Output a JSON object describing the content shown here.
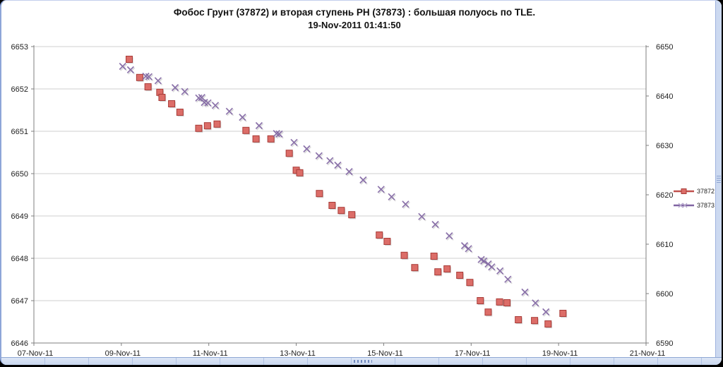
{
  "title": {
    "line1": "Фобос Грунт (37872) и вторая ступень РН (37873) : большая полуось по TLE.",
    "line2": "19-Nov-2011 01:41:50"
  },
  "colors": {
    "grid": "#cfcfcf",
    "axis": "#7f7f7f",
    "tick_text": "#1f1f1f",
    "series1_line": "#c0504d",
    "series1_fill": "#dc6d68",
    "series1_edge": "#a83c38",
    "series2_line": "#8064a2",
    "marker_shadow": "#9a9a9a"
  },
  "chart_data": {
    "type": "scatter",
    "title": "Фобос Грунт (37872) и вторая ступень РН (37873) : большая полуось по TLE.",
    "subtitle": "19-Nov-2011 01:41:50",
    "grid": "horizontal",
    "legend_position": "right",
    "x_axis": {
      "unit": "days since 07-Nov-11",
      "range": [
        0,
        14
      ],
      "tick_days": [
        0,
        2,
        4,
        6,
        8,
        10,
        12,
        14
      ],
      "tick_labels": [
        "07-Nov-11",
        "09-Nov-11",
        "11-Nov-11",
        "13-Nov-11",
        "15-Nov-11",
        "17-Nov-11",
        "19-Nov-11",
        "21-Nov-11"
      ]
    },
    "y_axis_left": {
      "range": [
        6646,
        6653
      ],
      "ticks": [
        6646,
        6647,
        6648,
        6649,
        6650,
        6651,
        6652,
        6653
      ]
    },
    "y_axis_right": {
      "range": [
        6590,
        6650
      ],
      "ticks": [
        6590,
        6600,
        6610,
        6620,
        6630,
        6640,
        6650
      ]
    },
    "series": [
      {
        "name": "37872",
        "axis": "left",
        "marker": "square",
        "points": [
          [
            2.18,
            6652.7
          ],
          [
            2.42,
            6652.27
          ],
          [
            2.61,
            6652.05
          ],
          [
            2.88,
            6651.92
          ],
          [
            2.93,
            6651.8
          ],
          [
            3.15,
            6651.65
          ],
          [
            3.34,
            6651.45
          ],
          [
            3.77,
            6651.07
          ],
          [
            3.97,
            6651.13
          ],
          [
            4.19,
            6651.17
          ],
          [
            4.85,
            6651.02
          ],
          [
            5.08,
            6650.82
          ],
          [
            5.42,
            6650.82
          ],
          [
            5.84,
            6650.48
          ],
          [
            6.0,
            6650.08
          ],
          [
            6.08,
            6650.02
          ],
          [
            6.53,
            6649.53
          ],
          [
            6.82,
            6649.25
          ],
          [
            7.03,
            6649.13
          ],
          [
            7.27,
            6649.03
          ],
          [
            7.9,
            6648.55
          ],
          [
            8.08,
            6648.4
          ],
          [
            8.47,
            6648.07
          ],
          [
            8.71,
            6647.78
          ],
          [
            9.15,
            6648.05
          ],
          [
            9.24,
            6647.68
          ],
          [
            9.45,
            6647.75
          ],
          [
            9.74,
            6647.6
          ],
          [
            9.97,
            6647.43
          ],
          [
            10.21,
            6647.0
          ],
          [
            10.39,
            6646.73
          ],
          [
            10.65,
            6646.97
          ],
          [
            10.82,
            6646.95
          ],
          [
            11.08,
            6646.55
          ],
          [
            11.45,
            6646.53
          ],
          [
            11.76,
            6646.45
          ],
          [
            12.1,
            6646.7
          ]
        ]
      },
      {
        "name": "37873",
        "axis": "right",
        "marker": "x",
        "points": [
          [
            2.03,
            6646.0
          ],
          [
            2.21,
            6645.3
          ],
          [
            2.56,
            6644.0
          ],
          [
            2.63,
            6643.9
          ],
          [
            2.84,
            6643.1
          ],
          [
            3.23,
            6641.7
          ],
          [
            3.45,
            6640.9
          ],
          [
            3.77,
            6639.6
          ],
          [
            3.84,
            6639.7
          ],
          [
            3.9,
            6638.7
          ],
          [
            3.98,
            6638.6
          ],
          [
            4.15,
            6638.1
          ],
          [
            4.47,
            6636.9
          ],
          [
            4.77,
            6635.7
          ],
          [
            5.15,
            6634.0
          ],
          [
            5.55,
            6632.4
          ],
          [
            5.61,
            6632.3
          ],
          [
            5.95,
            6630.6
          ],
          [
            6.24,
            6629.3
          ],
          [
            6.52,
            6627.9
          ],
          [
            6.77,
            6626.9
          ],
          [
            6.95,
            6626.0
          ],
          [
            7.21,
            6624.7
          ],
          [
            7.53,
            6623.0
          ],
          [
            7.94,
            6621.1
          ],
          [
            8.18,
            6619.6
          ],
          [
            8.5,
            6618.1
          ],
          [
            8.87,
            6615.6
          ],
          [
            9.18,
            6614.0
          ],
          [
            9.5,
            6611.7
          ],
          [
            9.85,
            6609.7
          ],
          [
            9.94,
            6609.1
          ],
          [
            10.23,
            6606.9
          ],
          [
            10.29,
            6606.6
          ],
          [
            10.39,
            6606.0
          ],
          [
            10.47,
            6605.4
          ],
          [
            10.66,
            6604.6
          ],
          [
            10.84,
            6602.9
          ],
          [
            11.23,
            6600.3
          ],
          [
            11.47,
            6598.1
          ],
          [
            11.71,
            6596.3
          ]
        ]
      }
    ],
    "legend_items": [
      "37872",
      "37873"
    ]
  }
}
